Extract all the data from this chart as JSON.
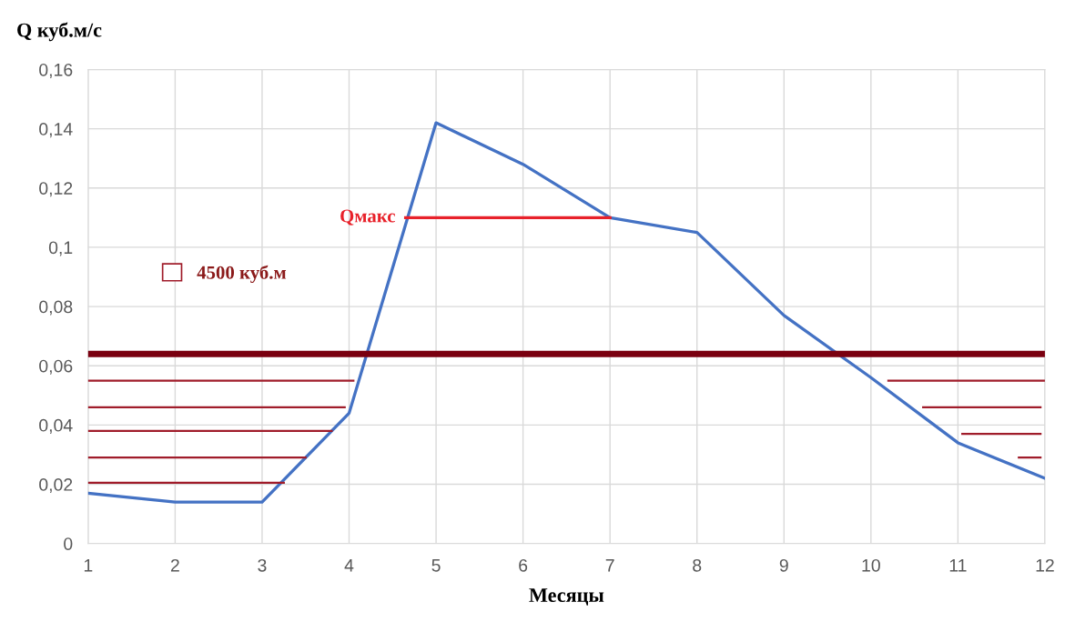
{
  "chart_data": {
    "type": "line",
    "xlabel": "Месяцы",
    "ylabel": "Q куб.м/с",
    "x": [
      1,
      2,
      3,
      4,
      5,
      6,
      7,
      8,
      9,
      10,
      11,
      12
    ],
    "series": [
      {
        "color": "#4472c4",
        "values": [
          0.017,
          0.014,
          0.014,
          0.044,
          0.142,
          0.128,
          0.11,
          0.105,
          0.077,
          0.056,
          0.034,
          0.022
        ]
      },
      {
        "color": "#e8212a",
        "x": [
          4.65,
          7
        ],
        "values": [
          0.11,
          0.11
        ]
      },
      {
        "name": "4500 куб.м",
        "color": "#a01c2a",
        "x": [
          1,
          4.05,
          null,
          1,
          3.95,
          null,
          1,
          3.8,
          null,
          1,
          3.5,
          null,
          1,
          3.25,
          null,
          10.2,
          12,
          null,
          10.6,
          11.95,
          null,
          11.05,
          11.95,
          null,
          11.7,
          11.95
        ],
        "values": [
          0.055,
          0.055,
          null,
          0.046,
          0.046,
          null,
          0.038,
          0.038,
          null,
          0.029,
          0.029,
          null,
          0.0205,
          0.0205,
          null,
          0.055,
          0.055,
          null,
          0.046,
          0.046,
          null,
          0.037,
          0.037,
          null,
          0.029,
          0.029
        ]
      }
    ],
    "ref_lines": [
      {
        "axis": "y",
        "value": 0.064,
        "color": "#7a0010"
      }
    ],
    "annotations": [
      {
        "text": "Qмакс",
        "x": 4.65,
        "y": 0.11
      }
    ],
    "xlim": [
      1,
      12
    ],
    "xticks": [
      1,
      2,
      3,
      4,
      5,
      6,
      7,
      8,
      9,
      10,
      11,
      12
    ],
    "ylim": [
      0,
      0.16
    ],
    "yticks": [
      0,
      {
        "value": 0.02,
        "label": "0,02"
      },
      {
        "value": 0.04,
        "label": "0,04"
      },
      {
        "value": 0.06,
        "label": "0,06"
      },
      {
        "value": 0.08,
        "label": "0,08"
      },
      {
        "value": 0.1,
        "label": "0,1"
      },
      {
        "value": 0.12,
        "label": "0,12"
      },
      {
        "value": 0.14,
        "label": "0,14"
      },
      {
        "value": 0.16,
        "label": "0,16"
      }
    ],
    "grid": true,
    "legend": "left",
    "marker": "none",
    "line_style": "solid"
  }
}
